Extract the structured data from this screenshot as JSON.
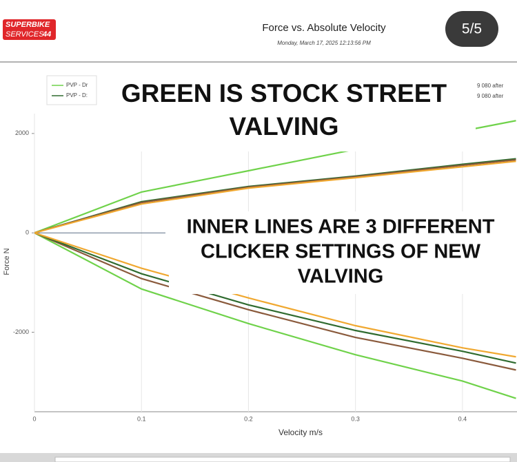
{
  "logo": {
    "line1": "SUPERBIKE",
    "line2": "SERVICES",
    "number": "44"
  },
  "page_badge": "5/5",
  "chart_data": {
    "type": "line",
    "title": "Force vs. Absolute Velocity",
    "subtitle": "Monday, March 17, 2025 12:13:56 PM",
    "x_label": "Velocity m/s",
    "y_label": "Force N",
    "x": [
      0,
      0.1,
      0.2,
      0.3,
      0.4,
      0.45
    ],
    "series": [
      {
        "name": "PVP - Dr",
        "color": "#6fd24a",
        "values": [
          0,
          822,
          1250,
          1680,
          2050,
          2258
        ]
      },
      {
        "name": "PVP - D:",
        "color": "#2f6b2f",
        "values": [
          0,
          627,
          934,
          1143,
          1380,
          1491
        ]
      },
      {
        "color": "#8a5a3c",
        "values": [
          0,
          610,
          920,
          1130,
          1360,
          1470
        ]
      },
      {
        "color": "#f0a830",
        "values": [
          0,
          580,
          900,
          1110,
          1330,
          1440
        ]
      },
      {
        "color": "#6fd24a",
        "values": [
          0,
          -1129,
          -1826,
          -2453,
          -2983,
          -3331
        ]
      },
      {
        "color": "#8a5a3c",
        "values": [
          0,
          -920,
          -1547,
          -2105,
          -2523,
          -2760
        ]
      },
      {
        "color": "#2f6b2f",
        "values": [
          0,
          -822,
          -1449,
          -1965,
          -2383,
          -2620
        ]
      },
      {
        "color": "#f0a830",
        "values": [
          0,
          -711,
          -1310,
          -1868,
          -2314,
          -2495
        ]
      }
    ],
    "legend_notes": [
      "9 080 after",
      "9 080 after"
    ],
    "xlim": [
      0,
      0.45
    ],
    "ylim": [
      -3600,
      2400
    ],
    "xticks": [
      0,
      0.1,
      0.2,
      0.3,
      0.4
    ],
    "yticks": [
      -2000,
      0,
      2000
    ],
    "annotations": [
      {
        "lines": [
          "GREEN IS STOCK STREET",
          "VALVING"
        ]
      },
      {
        "lines": [
          "INNER LINES ARE 3 DIFFERENT",
          "CLICKER SETTINGS OF NEW",
          "VALVING"
        ]
      }
    ]
  }
}
